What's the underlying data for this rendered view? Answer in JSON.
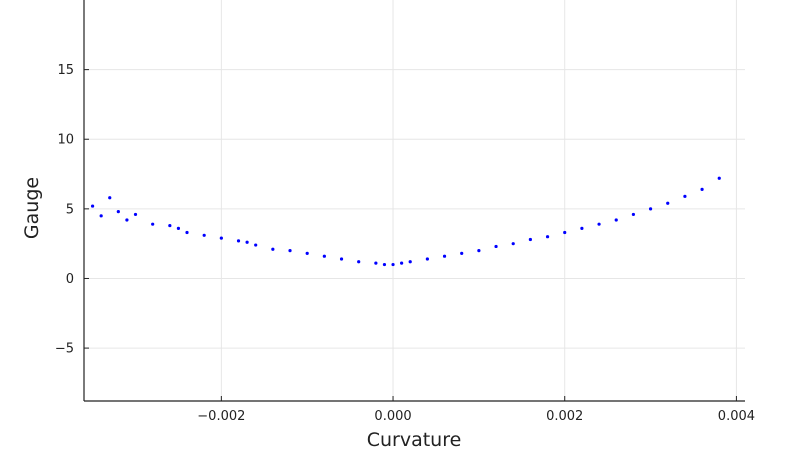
{
  "chart_data": {
    "type": "scatter",
    "title": "",
    "xlabel": "Curvature",
    "ylabel": "Gauge",
    "xlim": [
      -0.0036,
      0.0041
    ],
    "ylim": [
      -8.8,
      20
    ],
    "xticks": [
      -0.002,
      0.0,
      0.002,
      0.004
    ],
    "xtick_labels": [
      "−0.002",
      "0.000",
      "0.002",
      "0.004"
    ],
    "yticks": [
      -5,
      0,
      5,
      10,
      15
    ],
    "ytick_labels": [
      "−5",
      "0",
      "5",
      "10",
      "15"
    ],
    "grid": true,
    "legend": "none",
    "marker_color": "#0000ff",
    "series": [
      {
        "x": [
          -0.0035,
          -0.0034,
          -0.0033,
          -0.0032,
          -0.0031,
          -0.003,
          -0.0028,
          -0.0026,
          -0.0025,
          -0.0024,
          -0.0022,
          -0.002,
          -0.0018,
          -0.0017,
          -0.0016,
          -0.0014,
          -0.0012,
          -0.001,
          -0.0008,
          -0.0006,
          -0.0004,
          -0.0002,
          -0.0001,
          0.0,
          0.0001,
          0.0002,
          0.0004,
          0.0006,
          0.0008,
          0.001,
          0.0012,
          0.0014,
          0.0016,
          0.0018,
          0.002,
          0.0022,
          0.0024,
          0.0026,
          0.0028,
          0.003,
          0.0032,
          0.0034,
          0.0036,
          0.0038
        ],
        "y": [
          5.2,
          4.5,
          5.8,
          4.8,
          4.2,
          4.6,
          3.9,
          3.8,
          3.6,
          3.3,
          3.1,
          2.9,
          2.7,
          2.6,
          2.4,
          2.1,
          2.0,
          1.8,
          1.6,
          1.4,
          1.2,
          1.1,
          1.0,
          1.0,
          1.1,
          1.2,
          1.4,
          1.6,
          1.8,
          2.0,
          2.3,
          2.5,
          2.8,
          3.0,
          3.3,
          3.6,
          3.9,
          4.2,
          4.6,
          5.0,
          5.4,
          5.9,
          6.4,
          7.2
        ]
      }
    ]
  }
}
